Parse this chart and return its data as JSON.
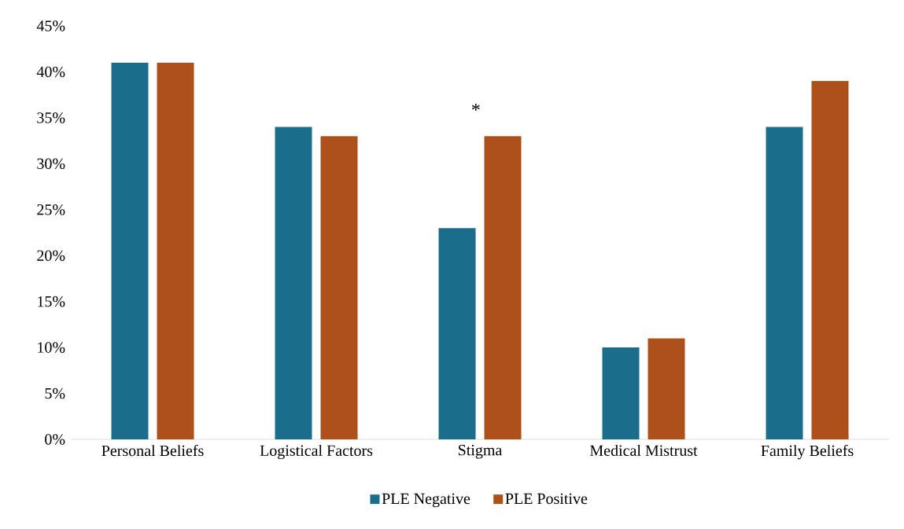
{
  "chart_data": {
    "type": "bar",
    "categories": [
      "Personal Beliefs",
      "Logistical Factors",
      "Stigma",
      "Medical Mistrust",
      "Family Beliefs"
    ],
    "series": [
      {
        "name": "PLE Negative",
        "color": "#1b6d8c",
        "values": [
          41,
          34,
          23,
          10,
          34
        ]
      },
      {
        "name": "PLE Positive",
        "color": "#ad5019",
        "values": [
          41,
          33,
          33,
          11,
          39
        ]
      }
    ],
    "ylim": [
      0,
      45
    ],
    "yticks": [
      {
        "value": 0,
        "label": "0%"
      },
      {
        "value": 5,
        "label": "5%"
      },
      {
        "value": 10,
        "label": "10%"
      },
      {
        "value": 15,
        "label": "15%"
      },
      {
        "value": 20,
        "label": "20%"
      },
      {
        "value": 25,
        "label": "25%"
      },
      {
        "value": 30,
        "label": "30%"
      },
      {
        "value": 35,
        "label": "35%"
      },
      {
        "value": 40,
        "label": "40%"
      },
      {
        "value": 45,
        "label": "45%"
      }
    ],
    "annotations": [
      "*"
    ],
    "grid": false,
    "legend": "bottom"
  }
}
